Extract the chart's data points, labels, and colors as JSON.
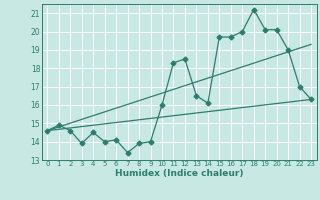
{
  "xlabel": "Humidex (Indice chaleur)",
  "xlim": [
    -0.5,
    23.5
  ],
  "ylim": [
    13,
    21.5
  ],
  "xticks": [
    0,
    1,
    2,
    3,
    4,
    5,
    6,
    7,
    8,
    9,
    10,
    11,
    12,
    13,
    14,
    15,
    16,
    17,
    18,
    19,
    20,
    21,
    22,
    23
  ],
  "yticks": [
    13,
    14,
    15,
    16,
    17,
    18,
    19,
    20,
    21
  ],
  "background_color": "#c8e8e4",
  "grid_color": "#ffffff",
  "line_color": "#2d7d6e",
  "line1_x": [
    0,
    1,
    2,
    3,
    4,
    5,
    6,
    7,
    8,
    9,
    10,
    11,
    12,
    13,
    14,
    15,
    16,
    17,
    18,
    19,
    20,
    21,
    22,
    23
  ],
  "line1_y": [
    14.6,
    14.9,
    14.6,
    13.9,
    14.5,
    14.0,
    14.1,
    13.4,
    13.9,
    14.0,
    16.0,
    18.3,
    18.5,
    16.5,
    16.1,
    19.7,
    19.7,
    20.0,
    21.2,
    20.1,
    20.1,
    19.0,
    17.0,
    16.3
  ],
  "line2_x": [
    0,
    23
  ],
  "line2_y": [
    14.6,
    16.3
  ],
  "line3_x": [
    0,
    23
  ],
  "line3_y": [
    14.6,
    19.3
  ],
  "marker": "D",
  "markersize": 2.5,
  "linewidth": 0.9
}
